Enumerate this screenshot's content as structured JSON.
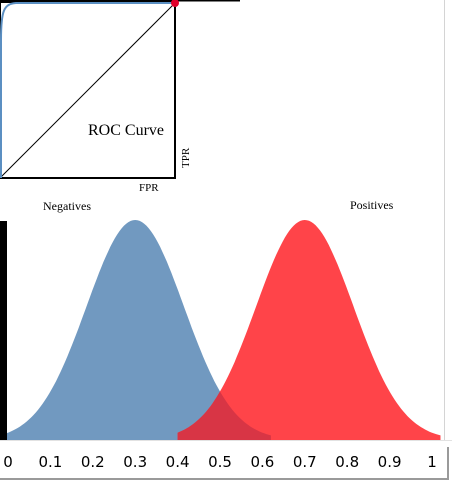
{
  "roc": {
    "title": "ROC Curve",
    "x_label": "FPR",
    "y_label": "TPR"
  },
  "distributions": {
    "negatives_label": "Negatives",
    "positives_label": "Positives",
    "negatives_color": "#7199c0",
    "positives_color": "#ff4449",
    "overlap_color": "#d83545",
    "negatives_mean": 0.3,
    "positives_mean": 0.7,
    "threshold": 0.4
  },
  "threshold_axis": {
    "ticks": [
      "0",
      "0.1",
      "0.2",
      "0.3",
      "0.4",
      "0.5",
      "0.6",
      "0.7",
      "0.8",
      "0.9",
      "1"
    ]
  },
  "colors": {
    "roc_curve": "#5b8fc2",
    "operating_point": "#e0002a"
  }
}
